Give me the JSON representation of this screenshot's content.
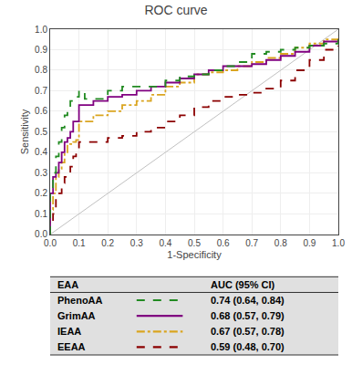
{
  "chart_data": {
    "type": "line",
    "line_shape": "step",
    "title": "ROC curve",
    "xlabel": "1-Specificity",
    "ylabel": "Sensitivity",
    "xlim": [
      0.0,
      1.0
    ],
    "ylim": [
      0.0,
      1.0
    ],
    "xticks": [
      {
        "value": 0.0,
        "label": "0.0"
      },
      0.1,
      0.2,
      0.3,
      0.4,
      0.5,
      0.6,
      0.7,
      0.8,
      0.9,
      {
        "value": 1.0,
        "label": "1.0"
      }
    ],
    "yticks": [
      {
        "value": 0.0,
        "label": "0.0"
      },
      0.1,
      0.2,
      0.3,
      0.4,
      0.5,
      0.6,
      0.7,
      0.8,
      0.9,
      {
        "value": 1.0,
        "label": "1.0"
      }
    ],
    "grid": true,
    "reference_line": {
      "x": [
        0,
        1
      ],
      "y": [
        0,
        1
      ],
      "color": "#c0c0c0"
    },
    "series": [
      {
        "name": "EEAA",
        "color": "#8B0000",
        "line_style": "dashed",
        "x": [
          0.0,
          0.0,
          0.01,
          0.01,
          0.02,
          0.02,
          0.03,
          0.04,
          0.05,
          0.06,
          0.07,
          0.08,
          0.09,
          0.1,
          0.15,
          0.2,
          0.25,
          0.3,
          0.35,
          0.4,
          0.45,
          0.5,
          0.55,
          0.6,
          0.65,
          0.7,
          0.75,
          0.8,
          0.85,
          0.9,
          0.95,
          1.0
        ],
        "values": [
          0.0,
          0.05,
          0.05,
          0.1,
          0.1,
          0.2,
          0.2,
          0.25,
          0.28,
          0.3,
          0.33,
          0.38,
          0.4,
          0.45,
          0.45,
          0.47,
          0.48,
          0.5,
          0.52,
          0.55,
          0.58,
          0.62,
          0.65,
          0.67,
          0.68,
          0.69,
          0.71,
          0.75,
          0.8,
          0.85,
          0.9,
          0.92
        ]
      },
      {
        "name": "IEAA",
        "color": "#DAA520",
        "line_style": "dashdot",
        "x": [
          0.0,
          0.0,
          0.01,
          0.01,
          0.02,
          0.02,
          0.03,
          0.03,
          0.04,
          0.04,
          0.05,
          0.05,
          0.06,
          0.06,
          0.07,
          0.08,
          0.09,
          0.1,
          0.15,
          0.2,
          0.25,
          0.3,
          0.35,
          0.4,
          0.45,
          0.5,
          0.55,
          0.6,
          0.65,
          0.7,
          0.75,
          0.8,
          0.85,
          0.9,
          0.95,
          1.0
        ],
        "values": [
          0.0,
          0.12,
          0.12,
          0.2,
          0.2,
          0.28,
          0.28,
          0.32,
          0.32,
          0.35,
          0.35,
          0.4,
          0.4,
          0.44,
          0.44,
          0.45,
          0.46,
          0.55,
          0.58,
          0.6,
          0.63,
          0.65,
          0.68,
          0.72,
          0.74,
          0.78,
          0.79,
          0.8,
          0.82,
          0.84,
          0.86,
          0.88,
          0.91,
          0.93,
          0.95,
          0.97
        ]
      },
      {
        "name": "GrimAA",
        "color": "#800080",
        "line_style": "solid",
        "x": [
          0.0,
          0.0,
          0.01,
          0.01,
          0.02,
          0.02,
          0.03,
          0.03,
          0.04,
          0.04,
          0.05,
          0.05,
          0.06,
          0.06,
          0.07,
          0.07,
          0.08,
          0.08,
          0.09,
          0.1,
          0.1,
          0.15,
          0.2,
          0.25,
          0.3,
          0.35,
          0.4,
          0.45,
          0.5,
          0.55,
          0.6,
          0.65,
          0.7,
          0.75,
          0.8,
          0.85,
          0.9,
          0.95,
          1.0
        ],
        "values": [
          0.0,
          0.2,
          0.2,
          0.28,
          0.28,
          0.3,
          0.3,
          0.35,
          0.35,
          0.4,
          0.4,
          0.45,
          0.45,
          0.47,
          0.47,
          0.5,
          0.5,
          0.55,
          0.55,
          0.6,
          0.63,
          0.65,
          0.67,
          0.68,
          0.7,
          0.72,
          0.74,
          0.76,
          0.78,
          0.8,
          0.82,
          0.82,
          0.83,
          0.85,
          0.87,
          0.89,
          0.92,
          0.94,
          0.95
        ]
      },
      {
        "name": "PhenoAA",
        "color": "#228B22",
        "line_style": "dashed",
        "x": [
          0.0,
          0.0,
          0.01,
          0.01,
          0.02,
          0.02,
          0.03,
          0.03,
          0.04,
          0.04,
          0.05,
          0.05,
          0.06,
          0.06,
          0.07,
          0.07,
          0.08,
          0.08,
          0.09,
          0.09,
          0.1,
          0.1,
          0.12,
          0.12,
          0.15,
          0.2,
          0.25,
          0.3,
          0.35,
          0.4,
          0.45,
          0.5,
          0.55,
          0.6,
          0.65,
          0.7,
          0.7,
          0.75,
          0.8,
          0.85,
          0.9,
          0.95,
          1.0
        ],
        "values": [
          0.0,
          0.2,
          0.2,
          0.3,
          0.3,
          0.38,
          0.38,
          0.45,
          0.45,
          0.52,
          0.52,
          0.58,
          0.58,
          0.62,
          0.62,
          0.65,
          0.65,
          0.66,
          0.66,
          0.67,
          0.67,
          0.7,
          0.7,
          0.66,
          0.66,
          0.7,
          0.72,
          0.72,
          0.72,
          0.75,
          0.77,
          0.78,
          0.8,
          0.82,
          0.84,
          0.84,
          0.88,
          0.89,
          0.9,
          0.91,
          0.92,
          0.93,
          0.95
        ]
      }
    ],
    "table": {
      "color": "#e0e0e0",
      "columns": [
        "EAA",
        "AUC (95% CI)"
      ],
      "rows": [
        {
          "series": "PhenoAA",
          "text": "0.74 (0.64, 0.84)"
        },
        {
          "series": "GrimAA",
          "text": "0.68 (0.57, 0.79)"
        },
        {
          "series": "IEAA",
          "text": "0.67 (0.57, 0.78)"
        },
        {
          "series": "EEAA",
          "text": "0.59 (0.48, 0.70)"
        }
      ]
    }
  }
}
